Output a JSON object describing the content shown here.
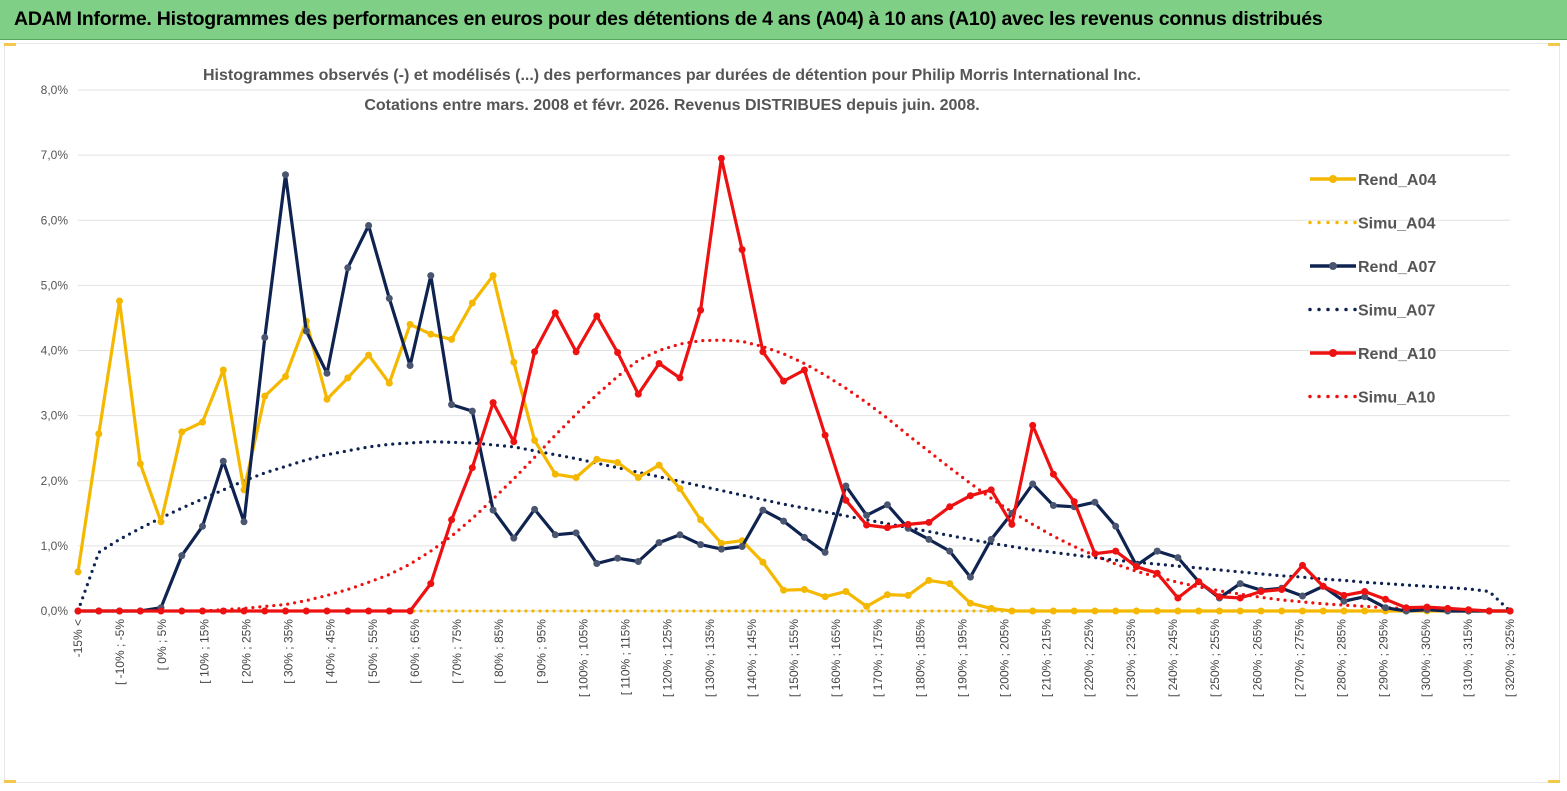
{
  "banner": {
    "title": "ADAM Informe. Histogrammes des performances en euros pour des détentions de 4 ans (A04) à 10 ans (A10) avec les revenus connus distribués"
  },
  "chart_data": {
    "type": "line",
    "title_line1": "Histogrammes observés (-) et modélisés (...) des performances par durées de détention pour Philip Morris International Inc.",
    "title_line2": "Cotations entre mars. 2008 et févr. 2026. Revenus DISTRIBUES depuis juin. 2008.",
    "ylim": [
      0,
      8
    ],
    "ytick_values": [
      0,
      1,
      2,
      3,
      4,
      5,
      6,
      7,
      8
    ],
    "ytick_labels": [
      "0,0%",
      "1,0%",
      "2,0%",
      "3,0%",
      "4,0%",
      "5,0%",
      "6,0%",
      "7,0%",
      "8,0%"
    ],
    "x_labels": [
      "-15% <",
      "[ -10% ; -5%",
      "[ 0% ; 5%",
      "[ 10% ; 15%",
      "[ 20% ; 25%",
      "[ 30% ; 35%",
      "[ 40% ; 45%",
      "[ 50% ; 55%",
      "[ 60% ; 65%",
      "[ 70% ; 75%",
      "[ 80% ; 85%",
      "[ 90% ; 95%",
      "[ 100% ; 105%",
      "[ 110% ; 115%",
      "[ 120% ; 125%",
      "[ 130% ; 135%",
      "[ 140% ; 145%",
      "[ 150% ; 155%",
      "[ 160% ; 165%",
      "[ 170% ; 175%",
      "[ 180% ; 185%",
      "[ 190% ; 195%",
      "[ 200% ; 205%",
      "[ 210% ; 215%",
      "[ 220% ; 225%",
      "[ 230% ; 235%",
      "[ 240% ; 245%",
      "[ 250% ; 255%",
      "[ 260% ; 265%",
      "[ 270% ; 275%",
      "[ 280% ; 285%",
      "[ 290% ; 295%",
      "[ 300% ; 305%",
      "[ 310% ; 315%",
      "[ 320% ; 325%"
    ],
    "n_points": 70,
    "series": [
      {
        "name": "Rend_A04",
        "color": "#f5b800",
        "style": "solid",
        "values": [
          0.6,
          2.72,
          4.76,
          2.26,
          1.37,
          2.75,
          2.9,
          3.7,
          1.86,
          3.3,
          3.6,
          4.45,
          3.25,
          3.58,
          3.93,
          3.5,
          4.4,
          4.25,
          4.17,
          4.73,
          5.15,
          3.82,
          2.62,
          2.1,
          2.05,
          2.33,
          2.28,
          2.05,
          2.24,
          1.88,
          1.4,
          1.04,
          1.08,
          0.75,
          0.32,
          0.33,
          0.22,
          0.3,
          0.07,
          0.25,
          0.24,
          0.47,
          0.42,
          0.12,
          0.04,
          0.0,
          0.0,
          0.0,
          0.0,
          0.0,
          0.0,
          0.0,
          0.0,
          0.0,
          0.0,
          0.0,
          0.0,
          0.0,
          0.0,
          0.0,
          0.0,
          0.0,
          0.0,
          0.0,
          0.0,
          0.0,
          0.0,
          0.0,
          0.0,
          0.0
        ]
      },
      {
        "name": "Simu_A04",
        "color": "#f5b800",
        "style": "dotted",
        "values": [
          0.0,
          0.0,
          0.0,
          0.0,
          0.0,
          0.0,
          0.0,
          0.0,
          0.0,
          0.0,
          0.0,
          0.0,
          0.0,
          0.0,
          0.0,
          0.0,
          0.0,
          0.0,
          0.0,
          0.0,
          0.0,
          0.0,
          0.0,
          0.0,
          0.0,
          0.0,
          0.0,
          0.0,
          0.0,
          0.0,
          0.0,
          0.0,
          0.0,
          0.0,
          0.0,
          0.0,
          0.0,
          0.0,
          0.0,
          0.0,
          0.0,
          0.0,
          0.0,
          0.0,
          0.0,
          0.0,
          0.0,
          0.0,
          0.0,
          0.0,
          0.0,
          0.0,
          0.0,
          0.0,
          0.0,
          0.0,
          0.0,
          0.0,
          0.0,
          0.0,
          0.0,
          0.0,
          0.0,
          0.0,
          0.0,
          0.0,
          0.0,
          0.0,
          0.0,
          0.0
        ]
      },
      {
        "name": "Rend_A07",
        "color": "#0f2350",
        "style": "solid",
        "values": [
          0.0,
          0.0,
          0.0,
          0.0,
          0.05,
          0.85,
          1.3,
          2.3,
          1.37,
          4.2,
          6.7,
          4.3,
          3.65,
          5.27,
          5.92,
          4.8,
          3.77,
          5.15,
          3.17,
          3.07,
          1.55,
          1.12,
          1.56,
          1.17,
          1.2,
          0.73,
          0.81,
          0.76,
          1.05,
          1.17,
          1.02,
          0.95,
          0.99,
          1.55,
          1.38,
          1.13,
          0.9,
          1.92,
          1.47,
          1.63,
          1.27,
          1.1,
          0.92,
          0.52,
          1.1,
          1.5,
          1.95,
          1.62,
          1.6,
          1.67,
          1.3,
          0.7,
          0.92,
          0.82,
          0.45,
          0.2,
          0.42,
          0.32,
          0.35,
          0.23,
          0.38,
          0.15,
          0.22,
          0.05,
          0.0,
          0.02,
          0.0,
          0.0,
          0.0,
          0.0
        ]
      },
      {
        "name": "Simu_A07",
        "color": "#0f2350",
        "style": "dotted",
        "values": [
          0.0,
          0.9,
          1.1,
          1.27,
          1.43,
          1.58,
          1.72,
          1.86,
          2.0,
          2.12,
          2.22,
          2.32,
          2.4,
          2.46,
          2.52,
          2.56,
          2.58,
          2.6,
          2.59,
          2.58,
          2.55,
          2.52,
          2.46,
          2.4,
          2.34,
          2.27,
          2.2,
          2.13,
          2.06,
          1.99,
          1.92,
          1.85,
          1.78,
          1.71,
          1.64,
          1.58,
          1.52,
          1.46,
          1.4,
          1.34,
          1.28,
          1.22,
          1.16,
          1.1,
          1.04,
          0.99,
          0.94,
          0.9,
          0.86,
          0.82,
          0.78,
          0.75,
          0.72,
          0.69,
          0.66,
          0.63,
          0.6,
          0.57,
          0.54,
          0.52,
          0.49,
          0.47,
          0.44,
          0.42,
          0.4,
          0.38,
          0.36,
          0.34,
          0.3,
          0.0
        ]
      },
      {
        "name": "Rend_A10",
        "color": "#ee1111",
        "style": "solid",
        "values": [
          0.0,
          0.0,
          0.0,
          0.0,
          0.0,
          0.0,
          0.0,
          0.0,
          0.0,
          0.0,
          0.0,
          0.0,
          0.0,
          0.0,
          0.0,
          0.0,
          0.0,
          0.42,
          1.4,
          2.2,
          3.2,
          2.6,
          3.98,
          4.58,
          3.98,
          4.53,
          3.97,
          3.33,
          3.8,
          3.58,
          4.62,
          6.95,
          5.55,
          3.98,
          3.53,
          3.7,
          2.7,
          1.7,
          1.32,
          1.28,
          1.33,
          1.36,
          1.6,
          1.77,
          1.86,
          1.33,
          2.85,
          2.1,
          1.68,
          0.88,
          0.92,
          0.68,
          0.58,
          0.2,
          0.45,
          0.22,
          0.2,
          0.3,
          0.33,
          0.7,
          0.38,
          0.24,
          0.3,
          0.18,
          0.05,
          0.06,
          0.04,
          0.02,
          0.0,
          0.0
        ]
      },
      {
        "name": "Simu_A10",
        "color": "#ee1111",
        "style": "dotted",
        "values": [
          0.0,
          0.0,
          0.0,
          0.0,
          0.0,
          0.0,
          0.0,
          0.02,
          0.04,
          0.07,
          0.1,
          0.16,
          0.24,
          0.33,
          0.44,
          0.56,
          0.72,
          0.92,
          1.15,
          1.42,
          1.72,
          2.03,
          2.36,
          2.7,
          3.02,
          3.32,
          3.6,
          3.85,
          4.0,
          4.1,
          4.15,
          4.16,
          4.14,
          4.06,
          3.95,
          3.8,
          3.62,
          3.42,
          3.2,
          2.96,
          2.7,
          2.45,
          2.2,
          1.96,
          1.73,
          1.52,
          1.33,
          1.15,
          0.99,
          0.85,
          0.72,
          0.61,
          0.52,
          0.44,
          0.37,
          0.31,
          0.26,
          0.21,
          0.17,
          0.14,
          0.11,
          0.09,
          0.07,
          0.05,
          0.04,
          0.03,
          0.02,
          0.01,
          0.0,
          0.0
        ]
      }
    ],
    "legend": [
      "Rend_A04",
      "Simu_A04",
      "Rend_A07",
      "Simu_A07",
      "Rend_A10",
      "Simu_A10"
    ]
  }
}
